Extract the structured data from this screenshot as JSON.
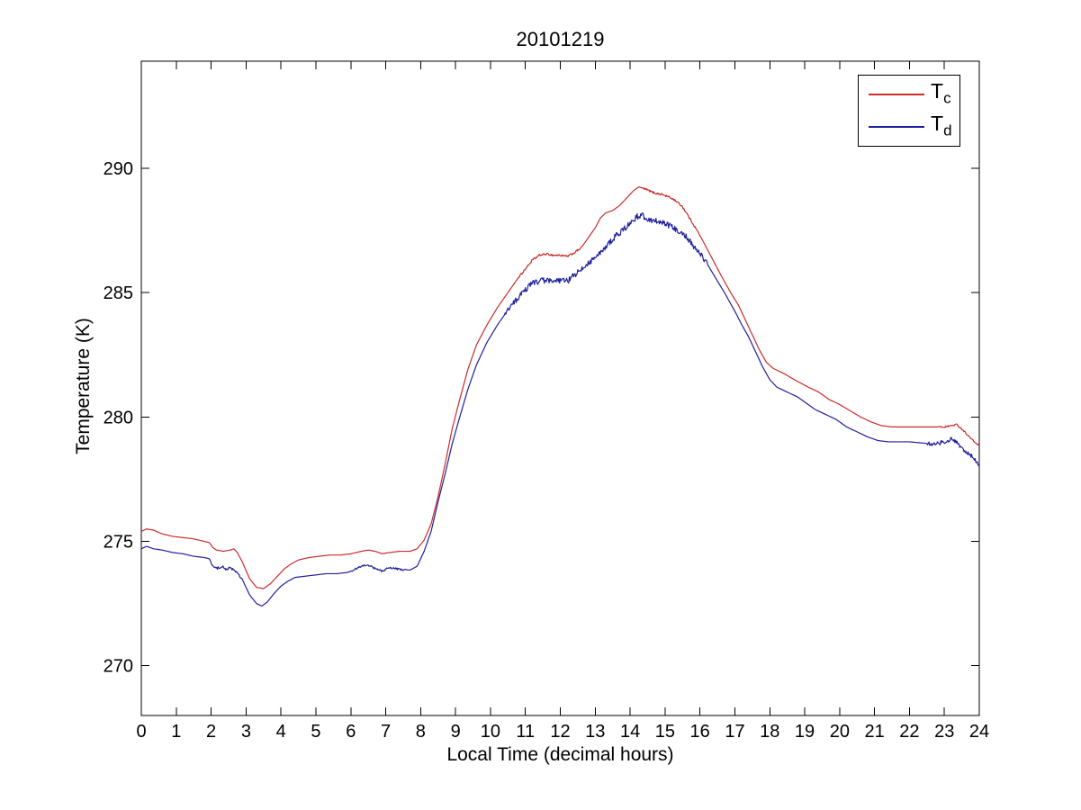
{
  "chart_data": {
    "type": "line",
    "title": "20101219",
    "xlabel": "Local Time (decimal hours)",
    "ylabel": "Temperature (K)",
    "xlim": [
      0,
      24
    ],
    "ylim": [
      268,
      294.3
    ],
    "xticks": [
      0,
      1,
      2,
      3,
      4,
      5,
      6,
      7,
      8,
      9,
      10,
      11,
      12,
      13,
      14,
      15,
      16,
      17,
      18,
      19,
      20,
      21,
      22,
      23,
      24
    ],
    "yticks": [
      270,
      275,
      280,
      285,
      290
    ],
    "grid": false,
    "background": "#ffffff",
    "axis_color": "#000000",
    "legend": {
      "position": "top-right",
      "border": true
    },
    "series": [
      {
        "name": "Tc",
        "label_main": "T",
        "label_sub": "c",
        "color": "#cc2b2b",
        "noise": [
          [
            10.8,
            12.6,
            0.04
          ],
          [
            14.3,
            16.0,
            0.04
          ],
          [
            22.8,
            24,
            0.03
          ]
        ],
        "points": [
          [
            0,
            275.4
          ],
          [
            0.15,
            275.5
          ],
          [
            0.35,
            275.45
          ],
          [
            0.6,
            275.3
          ],
          [
            0.9,
            275.2
          ],
          [
            1.2,
            275.15
          ],
          [
            1.5,
            275.1
          ],
          [
            1.8,
            275.0
          ],
          [
            1.95,
            274.95
          ],
          [
            2.05,
            274.75
          ],
          [
            2.15,
            274.65
          ],
          [
            2.35,
            274.6
          ],
          [
            2.55,
            274.65
          ],
          [
            2.65,
            274.7
          ],
          [
            2.75,
            274.55
          ],
          [
            2.9,
            274.15
          ],
          [
            3.1,
            273.5
          ],
          [
            3.3,
            273.15
          ],
          [
            3.5,
            273.1
          ],
          [
            3.7,
            273.3
          ],
          [
            3.9,
            273.6
          ],
          [
            4.1,
            273.9
          ],
          [
            4.3,
            274.1
          ],
          [
            4.5,
            274.25
          ],
          [
            4.8,
            274.35
          ],
          [
            5.1,
            274.4
          ],
          [
            5.4,
            274.45
          ],
          [
            5.7,
            274.45
          ],
          [
            6.0,
            274.5
          ],
          [
            6.3,
            274.6
          ],
          [
            6.5,
            274.65
          ],
          [
            6.7,
            274.6
          ],
          [
            6.9,
            274.5
          ],
          [
            7.1,
            274.55
          ],
          [
            7.4,
            274.6
          ],
          [
            7.7,
            274.6
          ],
          [
            7.9,
            274.7
          ],
          [
            8.1,
            275.05
          ],
          [
            8.3,
            275.7
          ],
          [
            8.5,
            276.8
          ],
          [
            8.7,
            278.1
          ],
          [
            8.9,
            279.5
          ],
          [
            9.1,
            280.6
          ],
          [
            9.35,
            281.9
          ],
          [
            9.6,
            282.9
          ],
          [
            9.9,
            283.7
          ],
          [
            10.2,
            284.4
          ],
          [
            10.5,
            285.0
          ],
          [
            10.8,
            285.6
          ],
          [
            11.0,
            285.95
          ],
          [
            11.2,
            286.3
          ],
          [
            11.4,
            286.5
          ],
          [
            11.6,
            286.55
          ],
          [
            11.8,
            286.5
          ],
          [
            12.0,
            286.5
          ],
          [
            12.2,
            286.45
          ],
          [
            12.4,
            286.6
          ],
          [
            12.6,
            286.8
          ],
          [
            12.8,
            287.2
          ],
          [
            13.0,
            287.6
          ],
          [
            13.15,
            288.0
          ],
          [
            13.3,
            288.2
          ],
          [
            13.5,
            288.3
          ],
          [
            13.7,
            288.5
          ],
          [
            13.9,
            288.8
          ],
          [
            14.1,
            289.1
          ],
          [
            14.25,
            289.25
          ],
          [
            14.45,
            289.15
          ],
          [
            14.7,
            289.0
          ],
          [
            14.9,
            288.95
          ],
          [
            15.1,
            288.85
          ],
          [
            15.3,
            288.7
          ],
          [
            15.5,
            288.45
          ],
          [
            15.7,
            288.0
          ],
          [
            16.0,
            287.3
          ],
          [
            16.3,
            286.5
          ],
          [
            16.6,
            285.7
          ],
          [
            16.9,
            284.95
          ],
          [
            17.1,
            284.5
          ],
          [
            17.3,
            283.9
          ],
          [
            17.5,
            283.3
          ],
          [
            17.7,
            282.7
          ],
          [
            17.9,
            282.2
          ],
          [
            18.1,
            281.95
          ],
          [
            18.4,
            281.75
          ],
          [
            18.7,
            281.5
          ],
          [
            18.9,
            281.35
          ],
          [
            19.1,
            281.2
          ],
          [
            19.4,
            281.0
          ],
          [
            19.7,
            280.7
          ],
          [
            20.0,
            280.5
          ],
          [
            20.3,
            280.25
          ],
          [
            20.6,
            280.0
          ],
          [
            20.9,
            279.8
          ],
          [
            21.2,
            279.65
          ],
          [
            21.5,
            279.6
          ],
          [
            22.0,
            279.6
          ],
          [
            22.5,
            279.6
          ],
          [
            23.0,
            279.6
          ],
          [
            23.2,
            279.65
          ],
          [
            23.35,
            279.7
          ],
          [
            23.55,
            279.45
          ],
          [
            23.75,
            279.15
          ],
          [
            23.9,
            278.95
          ],
          [
            24,
            278.85
          ]
        ]
      },
      {
        "name": "Td",
        "label_main": "T",
        "label_sub": "d",
        "color": "#1f1f9e",
        "noise": [
          [
            2.0,
            2.9,
            0.05
          ],
          [
            6.0,
            7.6,
            0.04
          ],
          [
            10.4,
            16.2,
            0.12
          ],
          [
            22.5,
            24,
            0.09
          ]
        ],
        "points": [
          [
            0,
            274.7
          ],
          [
            0.15,
            274.8
          ],
          [
            0.35,
            274.7
          ],
          [
            0.6,
            274.65
          ],
          [
            0.9,
            274.55
          ],
          [
            1.2,
            274.5
          ],
          [
            1.5,
            274.4
          ],
          [
            1.8,
            274.35
          ],
          [
            1.95,
            274.3
          ],
          [
            2.05,
            274.0
          ],
          [
            2.15,
            273.9
          ],
          [
            2.3,
            274.0
          ],
          [
            2.45,
            273.85
          ],
          [
            2.55,
            273.95
          ],
          [
            2.7,
            273.8
          ],
          [
            2.9,
            273.45
          ],
          [
            3.1,
            272.85
          ],
          [
            3.3,
            272.5
          ],
          [
            3.45,
            272.4
          ],
          [
            3.6,
            272.55
          ],
          [
            3.8,
            272.9
          ],
          [
            4.0,
            273.2
          ],
          [
            4.2,
            273.4
          ],
          [
            4.4,
            273.55
          ],
          [
            4.7,
            273.6
          ],
          [
            5.0,
            273.65
          ],
          [
            5.3,
            273.7
          ],
          [
            5.6,
            273.7
          ],
          [
            5.9,
            273.75
          ],
          [
            6.1,
            273.85
          ],
          [
            6.3,
            274.0
          ],
          [
            6.5,
            274.05
          ],
          [
            6.7,
            273.9
          ],
          [
            6.9,
            273.8
          ],
          [
            7.1,
            273.95
          ],
          [
            7.3,
            273.9
          ],
          [
            7.5,
            273.85
          ],
          [
            7.7,
            273.85
          ],
          [
            7.9,
            274.0
          ],
          [
            8.1,
            274.6
          ],
          [
            8.3,
            275.4
          ],
          [
            8.5,
            276.6
          ],
          [
            8.7,
            277.7
          ],
          [
            8.9,
            278.9
          ],
          [
            9.1,
            279.9
          ],
          [
            9.35,
            281.1
          ],
          [
            9.6,
            282.1
          ],
          [
            9.9,
            283.0
          ],
          [
            10.2,
            283.7
          ],
          [
            10.5,
            284.3
          ],
          [
            10.8,
            284.8
          ],
          [
            11.0,
            285.1
          ],
          [
            11.2,
            285.4
          ],
          [
            11.4,
            285.45
          ],
          [
            11.6,
            285.5
          ],
          [
            11.8,
            285.4
          ],
          [
            12.0,
            285.5
          ],
          [
            12.2,
            285.45
          ],
          [
            12.4,
            285.7
          ],
          [
            12.6,
            285.9
          ],
          [
            12.8,
            286.2
          ],
          [
            13.0,
            286.4
          ],
          [
            13.2,
            286.65
          ],
          [
            13.4,
            287.0
          ],
          [
            13.6,
            287.3
          ],
          [
            13.8,
            287.5
          ],
          [
            14.0,
            287.8
          ],
          [
            14.2,
            288.05
          ],
          [
            14.35,
            288.1
          ],
          [
            14.5,
            287.95
          ],
          [
            14.7,
            287.9
          ],
          [
            14.9,
            287.8
          ],
          [
            15.1,
            287.7
          ],
          [
            15.3,
            287.55
          ],
          [
            15.5,
            287.4
          ],
          [
            15.7,
            287.1
          ],
          [
            15.9,
            286.7
          ],
          [
            16.1,
            286.4
          ],
          [
            16.4,
            285.7
          ],
          [
            16.7,
            285.0
          ],
          [
            17.0,
            284.25
          ],
          [
            17.2,
            283.7
          ],
          [
            17.4,
            283.2
          ],
          [
            17.6,
            282.6
          ],
          [
            17.8,
            282.0
          ],
          [
            18.0,
            281.5
          ],
          [
            18.2,
            281.2
          ],
          [
            18.5,
            281.0
          ],
          [
            18.8,
            280.8
          ],
          [
            19.0,
            280.6
          ],
          [
            19.3,
            280.3
          ],
          [
            19.6,
            280.1
          ],
          [
            19.9,
            279.9
          ],
          [
            20.2,
            279.6
          ],
          [
            20.5,
            279.4
          ],
          [
            20.8,
            279.2
          ],
          [
            21.1,
            279.05
          ],
          [
            21.4,
            279.0
          ],
          [
            22.0,
            279.0
          ],
          [
            22.4,
            278.95
          ],
          [
            22.7,
            278.9
          ],
          [
            23.0,
            279.0
          ],
          [
            23.2,
            279.1
          ],
          [
            23.4,
            278.9
          ],
          [
            23.6,
            278.6
          ],
          [
            23.8,
            278.4
          ],
          [
            23.9,
            278.2
          ],
          [
            24,
            278.1
          ]
        ]
      }
    ]
  }
}
